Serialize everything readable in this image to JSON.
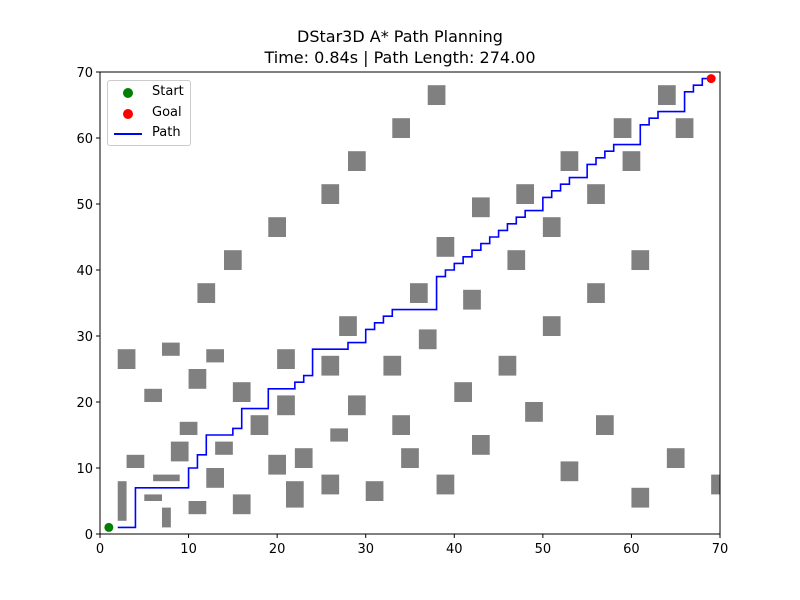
{
  "chart_data": {
    "type": "scatter",
    "title": "DStar3D A* Path Planning",
    "subtitle": "Time: 0.84s | Path Length: 274.00",
    "xlabel": "",
    "ylabel": "",
    "xlim": [
      0,
      70
    ],
    "ylim": [
      0,
      70
    ],
    "x_ticks": [
      0,
      10,
      20,
      30,
      40,
      50,
      60,
      70
    ],
    "y_ticks": [
      0,
      10,
      20,
      30,
      40,
      50,
      60,
      70
    ],
    "grid": false,
    "legend_position": "top-left",
    "colors": {
      "start": "#008000",
      "goal": "#ff0000",
      "path": "#0000ff",
      "obstacle": "#808080"
    },
    "series": [
      {
        "name": "Start",
        "kind": "point",
        "points": [
          [
            1,
            1
          ]
        ]
      },
      {
        "name": "Goal",
        "kind": "point",
        "points": [
          [
            69,
            69
          ]
        ]
      },
      {
        "name": "Path",
        "kind": "line",
        "points": [
          [
            2,
            1
          ],
          [
            4,
            1
          ],
          [
            4,
            7
          ],
          [
            10,
            7
          ],
          [
            10,
            10
          ],
          [
            11,
            10
          ],
          [
            11,
            12
          ],
          [
            12,
            12
          ],
          [
            12,
            15
          ],
          [
            15,
            15
          ],
          [
            15,
            16
          ],
          [
            16,
            16
          ],
          [
            16,
            19
          ],
          [
            19,
            19
          ],
          [
            19,
            22
          ],
          [
            22,
            22
          ],
          [
            22,
            23
          ],
          [
            23,
            23
          ],
          [
            23,
            24
          ],
          [
            24,
            24
          ],
          [
            24,
            28
          ],
          [
            28,
            28
          ],
          [
            28,
            29
          ],
          [
            30,
            29
          ],
          [
            30,
            31
          ],
          [
            31,
            31
          ],
          [
            31,
            32
          ],
          [
            32,
            32
          ],
          [
            32,
            33
          ],
          [
            33,
            33
          ],
          [
            33,
            34
          ],
          [
            38,
            34
          ],
          [
            38,
            39
          ],
          [
            39,
            39
          ],
          [
            39,
            40
          ],
          [
            40,
            40
          ],
          [
            40,
            41
          ],
          [
            41,
            41
          ],
          [
            41,
            42
          ],
          [
            42,
            42
          ],
          [
            42,
            43
          ],
          [
            43,
            43
          ],
          [
            43,
            44
          ],
          [
            44,
            44
          ],
          [
            44,
            45
          ],
          [
            45,
            45
          ],
          [
            45,
            46
          ],
          [
            46,
            46
          ],
          [
            46,
            47
          ],
          [
            47,
            47
          ],
          [
            47,
            48
          ],
          [
            48,
            48
          ],
          [
            48,
            49
          ],
          [
            50,
            49
          ],
          [
            50,
            51
          ],
          [
            51,
            51
          ],
          [
            51,
            52
          ],
          [
            52,
            52
          ],
          [
            52,
            53
          ],
          [
            53,
            53
          ],
          [
            53,
            54
          ],
          [
            55,
            54
          ],
          [
            55,
            56
          ],
          [
            56,
            56
          ],
          [
            56,
            57
          ],
          [
            57,
            57
          ],
          [
            57,
            58
          ],
          [
            58,
            58
          ],
          [
            58,
            59
          ],
          [
            61,
            59
          ],
          [
            61,
            62
          ],
          [
            62,
            62
          ],
          [
            62,
            63
          ],
          [
            63,
            63
          ],
          [
            63,
            64
          ],
          [
            66,
            64
          ],
          [
            66,
            67
          ],
          [
            67,
            67
          ],
          [
            67,
            68
          ],
          [
            68,
            68
          ],
          [
            68,
            69
          ],
          [
            69,
            69
          ]
        ]
      }
    ],
    "obstacles": [
      [
        2,
        2,
        1,
        6
      ],
      [
        2,
        25,
        2,
        3
      ],
      [
        3,
        10,
        2,
        2
      ],
      [
        5,
        5,
        2,
        1
      ],
      [
        5,
        20,
        2,
        2
      ],
      [
        6,
        8,
        3,
        1
      ],
      [
        7,
        1,
        1,
        3
      ],
      [
        7,
        27,
        2,
        2
      ],
      [
        8,
        11,
        2,
        3
      ],
      [
        9,
        15,
        2,
        2
      ],
      [
        10,
        3,
        2,
        2
      ],
      [
        10,
        22,
        2,
        3
      ],
      [
        11,
        35,
        2,
        3
      ],
      [
        12,
        7,
        2,
        3
      ],
      [
        12,
        26,
        2,
        2
      ],
      [
        13,
        12,
        2,
        2
      ],
      [
        14,
        40,
        2,
        3
      ],
      [
        15,
        3,
        2,
        3
      ],
      [
        15,
        20,
        2,
        3
      ],
      [
        17,
        15,
        2,
        3
      ],
      [
        19,
        9,
        2,
        3
      ],
      [
        19,
        45,
        2,
        3
      ],
      [
        20,
        18,
        2,
        3
      ],
      [
        20,
        25,
        2,
        3
      ],
      [
        21,
        4,
        2,
        4
      ],
      [
        22,
        10,
        2,
        3
      ],
      [
        25,
        6,
        2,
        3
      ],
      [
        25,
        24,
        2,
        3
      ],
      [
        25,
        50,
        2,
        3
      ],
      [
        26,
        14,
        2,
        2
      ],
      [
        27,
        30,
        2,
        3
      ],
      [
        28,
        18,
        2,
        3
      ],
      [
        28,
        55,
        2,
        3
      ],
      [
        30,
        5,
        2,
        3
      ],
      [
        32,
        24,
        2,
        3
      ],
      [
        33,
        15,
        2,
        3
      ],
      [
        33,
        60,
        2,
        3
      ],
      [
        34,
        10,
        2,
        3
      ],
      [
        35,
        35,
        2,
        3
      ],
      [
        36,
        28,
        2,
        3
      ],
      [
        37,
        65,
        2,
        3
      ],
      [
        38,
        6,
        2,
        3
      ],
      [
        38,
        42,
        2,
        3
      ],
      [
        40,
        20,
        2,
        3
      ],
      [
        41,
        34,
        2,
        3
      ],
      [
        42,
        12,
        2,
        3
      ],
      [
        42,
        48,
        2,
        3
      ],
      [
        45,
        24,
        2,
        3
      ],
      [
        46,
        40,
        2,
        3
      ],
      [
        47,
        50,
        2,
        3
      ],
      [
        48,
        17,
        2,
        3
      ],
      [
        50,
        30,
        2,
        3
      ],
      [
        50,
        45,
        2,
        3
      ],
      [
        52,
        8,
        2,
        3
      ],
      [
        52,
        55,
        2,
        3
      ],
      [
        55,
        35,
        2,
        3
      ],
      [
        55,
        50,
        2,
        3
      ],
      [
        56,
        15,
        2,
        3
      ],
      [
        58,
        60,
        2,
        3
      ],
      [
        59,
        55,
        2,
        3
      ],
      [
        60,
        4,
        2,
        3
      ],
      [
        60,
        40,
        2,
        3
      ],
      [
        63,
        65,
        2,
        3
      ],
      [
        64,
        10,
        2,
        3
      ],
      [
        65,
        60,
        2,
        3
      ],
      [
        69,
        6,
        1,
        3
      ]
    ]
  }
}
